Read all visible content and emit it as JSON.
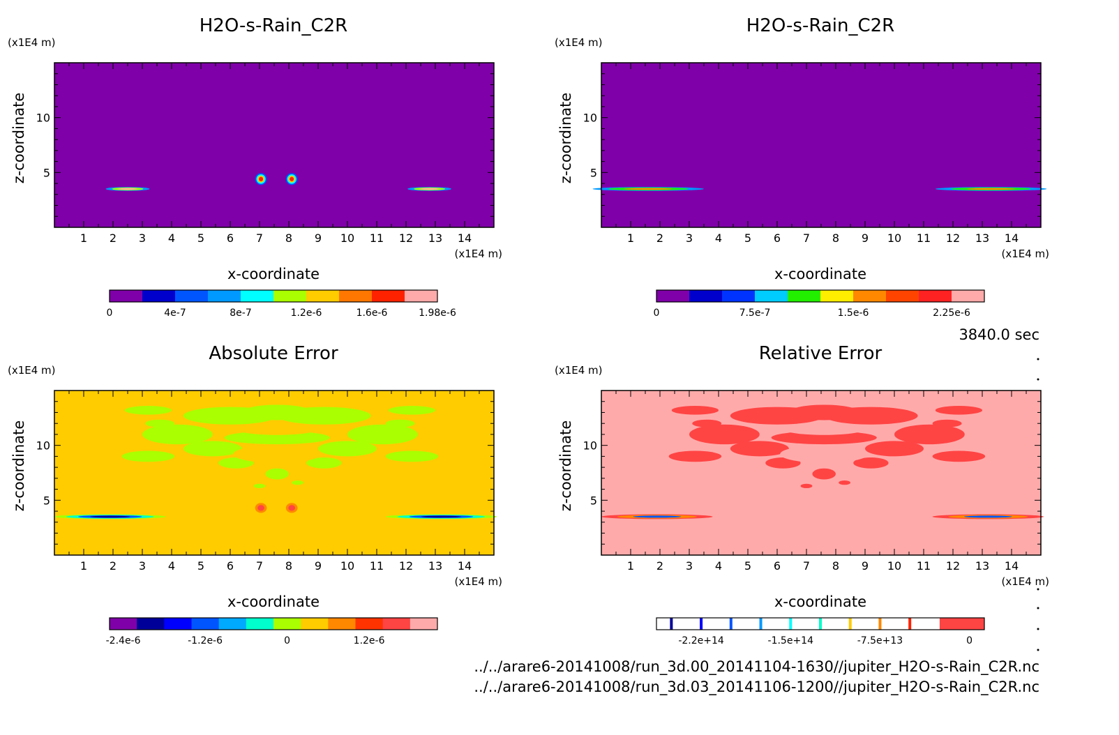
{
  "figure": {
    "time_label": "3840.0 sec",
    "footer_lines": [
      "../../arare6-20141008/run_3d.00_20141104-1630//jupiter_H2O-s-Rain_C2R.nc",
      "../../arare6-20141008/run_3d.03_20141106-1200//jupiter_H2O-s-Rain_C2R.nc"
    ]
  },
  "chart_data": [
    {
      "type": "heatmap",
      "title": "H2O-s-Rain_C2R",
      "xlabel": "x-coordinate",
      "ylabel": "z-coordinate",
      "x_unit": "(x1E4 m)",
      "y_unit": "(x1E4 m)",
      "xlim": [
        0,
        15
      ],
      "ylim": [
        0,
        15
      ],
      "x_ticks": [
        "1",
        "2",
        "3",
        "4",
        "5",
        "6",
        "7",
        "8",
        "9",
        "10",
        "11",
        "12",
        "13",
        "14"
      ],
      "y_ticks": [
        "5",
        "10"
      ],
      "background": "#7f00a8",
      "colorbar": {
        "colors": [
          "#7f00a8",
          "#0000cc",
          "#0055ff",
          "#0099ff",
          "#00ffff",
          "#aaff00",
          "#ffcc00",
          "#ff7700",
          "#ff2200",
          "#ffaaaa"
        ],
        "labels": [
          [
            "0",
            0
          ],
          [
            "4e-7",
            2
          ],
          [
            "8e-7",
            4
          ],
          [
            "1.2e-6",
            6
          ],
          [
            "1.6e-6",
            8
          ],
          [
            "1.98e-6",
            10
          ]
        ]
      },
      "features": [
        {
          "x": 2.5,
          "z": 3.5,
          "rx": 0.75,
          "rz": 0.18,
          "colors": [
            "#0099ff",
            "#aaff00",
            "#ffaaaa"
          ]
        },
        {
          "x": 12.8,
          "z": 3.5,
          "rx": 0.75,
          "rz": 0.18,
          "colors": [
            "#0099ff",
            "#aaff00",
            "#ffaaaa"
          ]
        },
        {
          "x": 7.05,
          "z": 4.4,
          "rx": 0.2,
          "rz": 0.55,
          "colors": [
            "#0055ff",
            "#00ffff",
            "#ffcc00",
            "#ff2200"
          ]
        },
        {
          "x": 8.1,
          "z": 4.4,
          "rx": 0.2,
          "rz": 0.55,
          "colors": [
            "#0055ff",
            "#00ffff",
            "#ffcc00",
            "#ff2200"
          ]
        }
      ]
    },
    {
      "type": "heatmap",
      "title": "H2O-s-Rain_C2R",
      "xlabel": "x-coordinate",
      "ylabel": "z-coordinate",
      "x_unit": "(x1E4 m)",
      "y_unit": "(x1E4 m)",
      "xlim": [
        0,
        15
      ],
      "ylim": [
        0,
        15
      ],
      "x_ticks": [
        "1",
        "2",
        "3",
        "4",
        "5",
        "6",
        "7",
        "8",
        "9",
        "10",
        "11",
        "12",
        "13",
        "14"
      ],
      "y_ticks": [
        "5",
        "10"
      ],
      "background": "#7f00a8",
      "colorbar": {
        "colors": [
          "#7f00a8",
          "#0000cc",
          "#0033ff",
          "#00ccff",
          "#22ee00",
          "#ffee00",
          "#ff8800",
          "#ff4400",
          "#ff2222",
          "#ffaaaa"
        ],
        "labels": [
          [
            "0",
            0
          ],
          [
            "7.5e-7",
            3
          ],
          [
            "1.5e-6",
            6
          ],
          [
            "2.25e-6",
            9
          ]
        ]
      },
      "features": [
        {
          "x": 1.6,
          "z": 3.5,
          "rx": 1.9,
          "rz": 0.18,
          "colors": [
            "#0099ff",
            "#22ee00",
            "#ff8800"
          ]
        },
        {
          "x": 13.3,
          "z": 3.5,
          "rx": 1.9,
          "rz": 0.18,
          "colors": [
            "#0099ff",
            "#22ee00",
            "#ff8800"
          ]
        }
      ]
    },
    {
      "type": "heatmap",
      "title": "Absolute Error",
      "xlabel": "x-coordinate",
      "ylabel": "z-coordinate",
      "x_unit": "(x1E4 m)",
      "y_unit": "(x1E4 m)",
      "xlim": [
        0,
        15
      ],
      "ylim": [
        0,
        15
      ],
      "x_ticks": [
        "1",
        "2",
        "3",
        "4",
        "5",
        "6",
        "7",
        "8",
        "9",
        "10",
        "11",
        "12",
        "13",
        "14"
      ],
      "y_ticks": [
        "5",
        "10"
      ],
      "background": "#ffcc00",
      "colorbar": {
        "colors": [
          "#7f00a8",
          "#000099",
          "#0000ff",
          "#0055ff",
          "#00aaff",
          "#00ffcc",
          "#aaff00",
          "#ffcc00",
          "#ff8800",
          "#ff3300",
          "#ff4444",
          "#ffaaaa"
        ],
        "labels": [
          [
            "-2.4e-6",
            0.5
          ],
          [
            "-1.2e-6",
            3.5
          ],
          [
            "0",
            6.5
          ],
          [
            "1.2e-6",
            9.5
          ]
        ]
      },
      "features": [
        {
          "x": 1.9,
          "z": 3.5,
          "rx": 1.9,
          "rz": 0.22,
          "colors": [
            "#aaff00",
            "#00ffcc",
            "#0055ff",
            "#000099"
          ]
        },
        {
          "x": 13.2,
          "z": 3.5,
          "rx": 1.9,
          "rz": 0.22,
          "colors": [
            "#aaff00",
            "#00ffcc",
            "#0055ff",
            "#000099"
          ]
        },
        {
          "x": 7.05,
          "z": 4.3,
          "rx": 0.2,
          "rz": 0.45,
          "colors": [
            "#ff8800",
            "#ff4444"
          ]
        },
        {
          "x": 8.1,
          "z": 4.3,
          "rx": 0.2,
          "rz": 0.45,
          "colors": [
            "#ff8800",
            "#ff4444"
          ]
        }
      ],
      "patch_color": "#aaff00"
    },
    {
      "type": "heatmap",
      "title": "Relative Error",
      "xlabel": "x-coordinate",
      "ylabel": "z-coordinate",
      "x_unit": "(x1E4 m)",
      "y_unit": "(x1E4 m)",
      "xlim": [
        0,
        15
      ],
      "ylim": [
        0,
        15
      ],
      "x_ticks": [
        "1",
        "2",
        "3",
        "4",
        "5",
        "6",
        "7",
        "8",
        "9",
        "10",
        "11",
        "12",
        "13",
        "14"
      ],
      "y_ticks": [
        "5",
        "10"
      ],
      "background": "#ffaaaa",
      "colorbar": {
        "type": "lines",
        "line_colors": [
          "#000099",
          "#0000ff",
          "#0055ff",
          "#0099ff",
          "#00ffff",
          "#00ffcc",
          "#ffcc00",
          "#ff8800",
          "#ff2200"
        ],
        "end_color": "#ff4444",
        "labels": [
          [
            "-2.2e+14",
            1.5
          ],
          [
            "-1.5e+14",
            4.5
          ],
          [
            "-7.5e+13",
            7.5
          ],
          [
            "0",
            10.5
          ]
        ]
      },
      "features": [
        {
          "x": 1.9,
          "z": 3.5,
          "rx": 1.9,
          "rz": 0.22,
          "colors": [
            "#ff4444",
            "#ff8800",
            "#0055ff"
          ]
        },
        {
          "x": 13.2,
          "z": 3.5,
          "rx": 1.9,
          "rz": 0.22,
          "colors": [
            "#ff4444",
            "#ff8800",
            "#0055ff"
          ]
        }
      ],
      "patch_color": "#ff4444"
    }
  ]
}
